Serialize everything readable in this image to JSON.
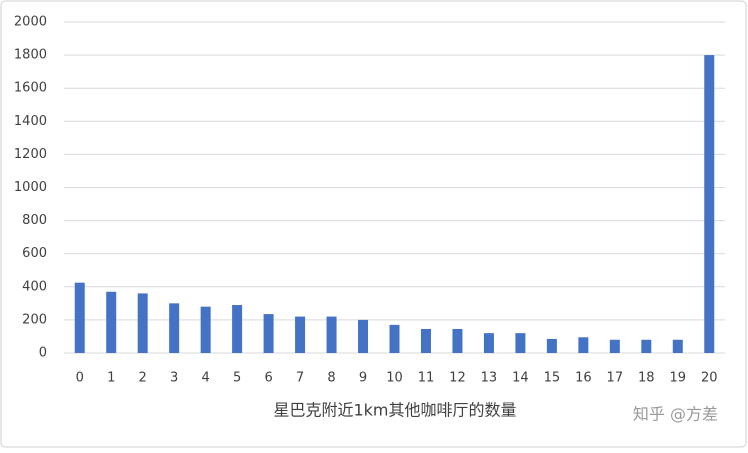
{
  "chart_data": {
    "type": "bar",
    "x_label": "星巴克附近1km其他咖啡厅的数量",
    "annotation": "知乎 @方差",
    "categories": [
      "0",
      "1",
      "2",
      "3",
      "4",
      "5",
      "6",
      "7",
      "8",
      "9",
      "10",
      "11",
      "12",
      "13",
      "14",
      "15",
      "16",
      "17",
      "18",
      "19",
      "20"
    ],
    "values": [
      425,
      370,
      360,
      300,
      280,
      290,
      235,
      220,
      220,
      200,
      170,
      145,
      145,
      120,
      120,
      85,
      95,
      80,
      80,
      80,
      1800
    ],
    "color": "#4472c4",
    "ylim": [
      0,
      2000
    ],
    "yticks": [
      0,
      200,
      400,
      600,
      800,
      1000,
      1200,
      1400,
      1600,
      1800,
      2000
    ],
    "grid": true
  }
}
